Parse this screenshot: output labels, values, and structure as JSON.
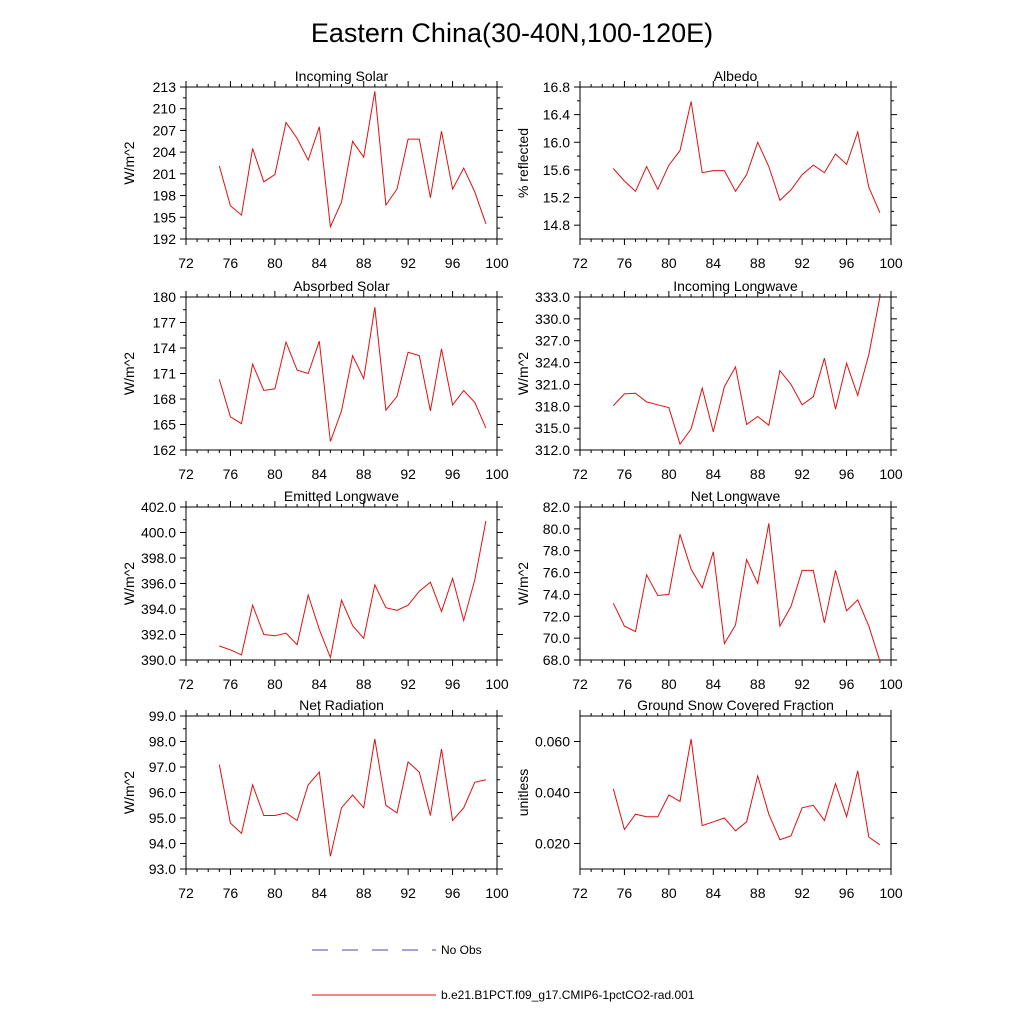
{
  "figure": {
    "title": "Eastern China(30-40N,100-120E)"
  },
  "legend": {
    "entries": [
      {
        "label": "No Obs",
        "color": "#4a4ab0",
        "dash": true
      },
      {
        "label": "b.e21.B1PCT.f09_g17.CMIP6-1pctCO2-rad.001",
        "color": "#e01010",
        "dash": false
      }
    ]
  },
  "colors": {
    "series": "#e01010",
    "obs": "#4a4ab0",
    "axis": "#000000"
  },
  "chart_data": [
    {
      "type": "line",
      "title": "Incoming Solar",
      "ylabel": "W/m^2",
      "xlabel": "",
      "xlim": [
        72,
        100
      ],
      "ylim": [
        192,
        213
      ],
      "x_ticks": [
        "72",
        "76",
        "80",
        "84",
        "88",
        "92",
        "96",
        "100"
      ],
      "y_ticks": [
        "192",
        "195",
        "198",
        "201",
        "204",
        "207",
        "210",
        "213"
      ],
      "series": [
        {
          "x": [
            75,
            76,
            77,
            78,
            79,
            80,
            81,
            82,
            83,
            84,
            85,
            86,
            87,
            88,
            89,
            90,
            91,
            92,
            93,
            94,
            95,
            96,
            97,
            98,
            99
          ],
          "values": [
            202.1,
            196.6,
            195.3,
            204.5,
            199.9,
            200.9,
            208.1,
            205.9,
            202.9,
            207.5,
            193.7,
            197.1,
            205.5,
            203.3,
            212.4,
            196.7,
            198.9,
            205.8,
            205.8,
            197.7,
            206.9,
            198.9,
            201.8,
            198.5,
            194.1
          ]
        }
      ]
    },
    {
      "type": "line",
      "title": "Albedo",
      "ylabel": "% reflected",
      "xlabel": "",
      "xlim": [
        72,
        100
      ],
      "ylim": [
        14.6,
        16.8
      ],
      "x_ticks": [
        "72",
        "76",
        "80",
        "84",
        "88",
        "92",
        "96",
        "100"
      ],
      "y_ticks": [
        "14.8",
        "15.2",
        "15.6",
        "16.0",
        "16.4",
        "16.8"
      ],
      "series": [
        {
          "x": [
            75,
            76,
            77,
            78,
            79,
            80,
            81,
            82,
            83,
            84,
            85,
            86,
            87,
            88,
            89,
            90,
            91,
            92,
            93,
            94,
            95,
            96,
            97,
            98,
            99
          ],
          "values": [
            15.62,
            15.44,
            15.29,
            15.65,
            15.32,
            15.67,
            15.88,
            16.59,
            15.56,
            15.59,
            15.59,
            15.29,
            15.53,
            16.0,
            15.65,
            15.16,
            15.31,
            15.53,
            15.67,
            15.56,
            15.83,
            15.68,
            16.15,
            15.35,
            14.98
          ]
        }
      ]
    },
    {
      "type": "line",
      "title": "Absorbed Solar",
      "ylabel": "W/m^2",
      "xlabel": "",
      "xlim": [
        72,
        100
      ],
      "ylim": [
        162,
        180
      ],
      "x_ticks": [
        "72",
        "76",
        "80",
        "84",
        "88",
        "92",
        "96",
        "100"
      ],
      "y_ticks": [
        "162",
        "165",
        "168",
        "171",
        "174",
        "177",
        "180"
      ],
      "series": [
        {
          "x": [
            75,
            76,
            77,
            78,
            79,
            80,
            81,
            82,
            83,
            84,
            85,
            86,
            87,
            88,
            89,
            90,
            91,
            92,
            93,
            94,
            95,
            96,
            97,
            98,
            99
          ],
          "values": [
            170.3,
            165.9,
            165.1,
            172.1,
            169.0,
            169.2,
            174.7,
            171.4,
            171.0,
            174.8,
            163.0,
            166.6,
            173.1,
            170.4,
            178.8,
            166.7,
            168.3,
            173.5,
            173.1,
            166.6,
            173.9,
            167.3,
            169.0,
            167.6,
            164.6
          ]
        }
      ]
    },
    {
      "type": "line",
      "title": "Incoming Longwave",
      "ylabel": "W/m^2",
      "xlabel": "",
      "xlim": [
        72,
        100
      ],
      "ylim": [
        312,
        333
      ],
      "x_ticks": [
        "72",
        "76",
        "80",
        "84",
        "88",
        "92",
        "96",
        "100"
      ],
      "y_ticks": [
        "312.0",
        "315.0",
        "318.0",
        "321.0",
        "324.0",
        "327.0",
        "330.0",
        "333.0"
      ],
      "series": [
        {
          "x": [
            75,
            76,
            77,
            78,
            79,
            80,
            81,
            82,
            83,
            84,
            85,
            86,
            87,
            88,
            89,
            90,
            91,
            92,
            93,
            94,
            95,
            96,
            97,
            98,
            99
          ],
          "values": [
            318.1,
            319.7,
            319.8,
            318.6,
            318.2,
            317.8,
            312.8,
            314.9,
            320.5,
            314.5,
            320.7,
            323.4,
            315.5,
            316.6,
            315.4,
            322.9,
            321.0,
            318.2,
            319.3,
            324.6,
            317.6,
            323.9,
            319.5,
            325.1,
            333.0
          ]
        }
      ]
    },
    {
      "type": "line",
      "title": "Emitted Longwave",
      "ylabel": "W/m^2",
      "xlabel": "",
      "xlim": [
        72,
        100
      ],
      "ylim": [
        390,
        402
      ],
      "x_ticks": [
        "72",
        "76",
        "80",
        "84",
        "88",
        "92",
        "96",
        "100"
      ],
      "y_ticks": [
        "390.0",
        "392.0",
        "394.0",
        "396.0",
        "398.0",
        "400.0",
        "402.0"
      ],
      "series": [
        {
          "x": [
            75,
            76,
            77,
            78,
            79,
            80,
            81,
            82,
            83,
            84,
            85,
            86,
            87,
            88,
            89,
            90,
            91,
            92,
            93,
            94,
            95,
            96,
            97,
            98,
            99
          ],
          "values": [
            391.1,
            390.8,
            390.4,
            394.3,
            392.0,
            391.9,
            392.1,
            391.2,
            395.1,
            392.4,
            390.2,
            394.7,
            392.7,
            391.7,
            395.9,
            394.1,
            393.9,
            394.3,
            395.4,
            396.1,
            393.8,
            396.4,
            393.1,
            396.3,
            400.9
          ]
        }
      ]
    },
    {
      "type": "line",
      "title": "Net Longwave",
      "ylabel": "W/m^2",
      "xlabel": "",
      "xlim": [
        72,
        100
      ],
      "ylim": [
        68,
        82
      ],
      "x_ticks": [
        "72",
        "76",
        "80",
        "84",
        "88",
        "92",
        "96",
        "100"
      ],
      "y_ticks": [
        "68.0",
        "70.0",
        "72.0",
        "74.0",
        "76.0",
        "78.0",
        "80.0",
        "82.0"
      ],
      "series": [
        {
          "x": [
            75,
            76,
            77,
            78,
            79,
            80,
            81,
            82,
            83,
            84,
            85,
            86,
            87,
            88,
            89,
            90,
            91,
            92,
            93,
            94,
            95,
            96,
            97,
            98,
            99
          ],
          "values": [
            73.2,
            71.1,
            70.6,
            75.8,
            73.9,
            74.0,
            79.5,
            76.3,
            74.6,
            77.9,
            69.5,
            71.2,
            77.2,
            75.0,
            80.5,
            71.1,
            72.9,
            76.2,
            76.2,
            71.4,
            76.2,
            72.5,
            73.5,
            71.1,
            67.9
          ]
        }
      ]
    },
    {
      "type": "line",
      "title": "Net Radiation",
      "ylabel": "W/m^2",
      "xlabel": "",
      "xlim": [
        72,
        100
      ],
      "ylim": [
        93,
        99
      ],
      "x_ticks": [
        "72",
        "76",
        "80",
        "84",
        "88",
        "92",
        "96",
        "100"
      ],
      "y_ticks": [
        "93.0",
        "94.0",
        "95.0",
        "96.0",
        "97.0",
        "98.0",
        "99.0"
      ],
      "series": [
        {
          "x": [
            75,
            76,
            77,
            78,
            79,
            80,
            81,
            82,
            83,
            84,
            85,
            86,
            87,
            88,
            89,
            90,
            91,
            92,
            93,
            94,
            95,
            96,
            97,
            98,
            99
          ],
          "values": [
            97.1,
            94.8,
            94.4,
            96.3,
            95.1,
            95.1,
            95.2,
            94.9,
            96.3,
            96.8,
            93.5,
            95.4,
            95.9,
            95.4,
            98.1,
            95.5,
            95.2,
            97.2,
            96.8,
            95.1,
            97.7,
            94.9,
            95.4,
            96.4,
            96.5
          ]
        }
      ]
    },
    {
      "type": "line",
      "title": "Ground Snow Covered Fraction",
      "ylabel": "unitless",
      "xlabel": "",
      "xlim": [
        72,
        100
      ],
      "ylim": [
        0.01,
        0.07
      ],
      "x_ticks": [
        "72",
        "76",
        "80",
        "84",
        "88",
        "92",
        "96",
        "100"
      ],
      "y_ticks": [
        "0.020",
        "0.040",
        "0.060"
      ],
      "y_tick_values": [
        0.02,
        0.04,
        0.06
      ],
      "series": [
        {
          "x": [
            75,
            76,
            77,
            78,
            79,
            80,
            81,
            82,
            83,
            84,
            85,
            86,
            87,
            88,
            89,
            90,
            91,
            92,
            93,
            94,
            95,
            96,
            97,
            98,
            99
          ],
          "values": [
            0.0415,
            0.0255,
            0.0315,
            0.0305,
            0.0305,
            0.039,
            0.0365,
            0.061,
            0.027,
            0.0285,
            0.03,
            0.025,
            0.0285,
            0.0465,
            0.0315,
            0.0215,
            0.023,
            0.034,
            0.035,
            0.029,
            0.0435,
            0.0305,
            0.0485,
            0.0225,
            0.0195
          ]
        }
      ]
    }
  ]
}
